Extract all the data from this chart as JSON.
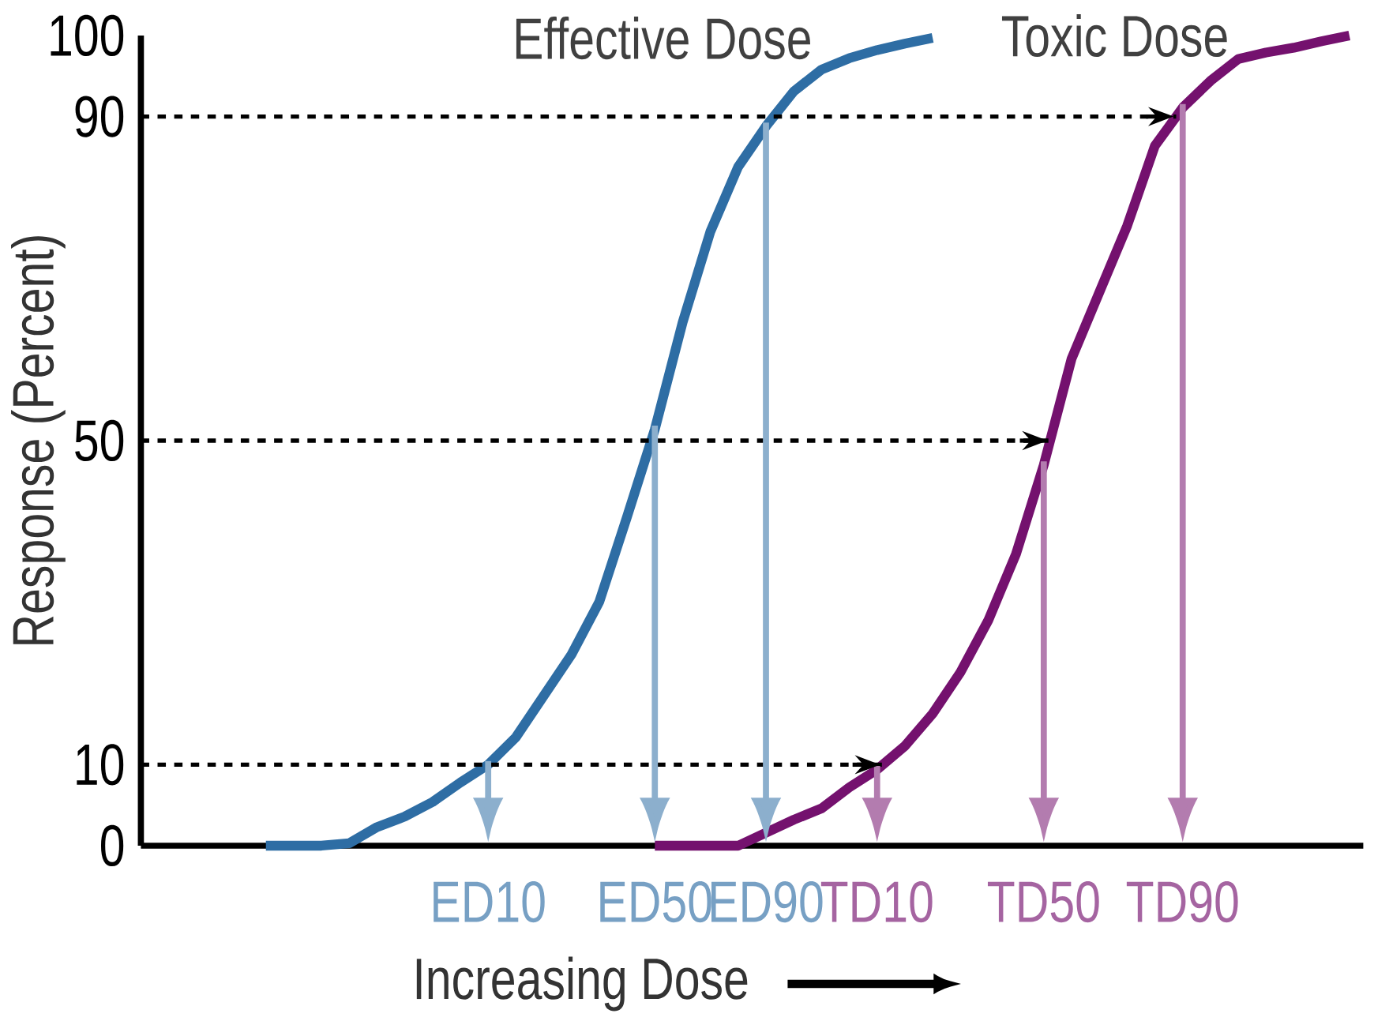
{
  "chart_data": {
    "type": "line",
    "xlabel": "Increasing Dose",
    "ylabel": "Response (Percent)",
    "categories": [
      null,
      null,
      null,
      null,
      null,
      null,
      null,
      null,
      null,
      null,
      null,
      null,
      "ED10",
      null,
      null,
      null,
      null,
      null,
      "ED50",
      null,
      null,
      null,
      "ED90",
      null,
      null,
      null,
      "TD10",
      null,
      null,
      null,
      null,
      null,
      "TD50",
      null,
      null,
      null,
      null,
      "TD90",
      null,
      null,
      null,
      null,
      null,
      null
    ],
    "ylim": [
      0,
      100
    ],
    "yticks": [
      0,
      10,
      50,
      90,
      100
    ],
    "legend": false,
    "grid": false,
    "marker": "none",
    "line_style": "solid",
    "series": [
      {
        "name": "Effective Dose",
        "color": "#2e6da4",
        "values": [
          null,
          null,
          null,
          null,
          0,
          0,
          0,
          0.3,
          2.3,
          3.6,
          5.4,
          7.8,
          10,
          13.4,
          18.5,
          23.6,
          30.1,
          40.6,
          51.4,
          64.6,
          75.8,
          83.8,
          88.8,
          93.1,
          95.8,
          97.2,
          98.2,
          99,
          99.7,
          null,
          null,
          null,
          null,
          null,
          null,
          null,
          null,
          null,
          null,
          null,
          null,
          null,
          null,
          null
        ]
      },
      {
        "name": "Toxic Dose",
        "color": "#74116e",
        "values": [
          null,
          null,
          null,
          null,
          null,
          null,
          null,
          null,
          null,
          null,
          null,
          null,
          null,
          null,
          null,
          null,
          null,
          null,
          0,
          0,
          0,
          0,
          1.6,
          3.2,
          4.6,
          7.2,
          9.4,
          12.3,
          16.3,
          21.4,
          27.8,
          36.0,
          47.0,
          60.1,
          68.3,
          76.5,
          86.4,
          91.1,
          94.4,
          97.1,
          97.9,
          98.5,
          99.3,
          100
        ]
      }
    ],
    "ref_lines": [
      {
        "axis": "y",
        "value": 10,
        "color": "#000000",
        "line_style": "dashed"
      },
      {
        "axis": "y",
        "value": 50,
        "color": "#000000",
        "line_style": "dashed"
      },
      {
        "axis": "y",
        "value": 90,
        "color": "#000000",
        "line_style": "dashed"
      }
    ]
  }
}
